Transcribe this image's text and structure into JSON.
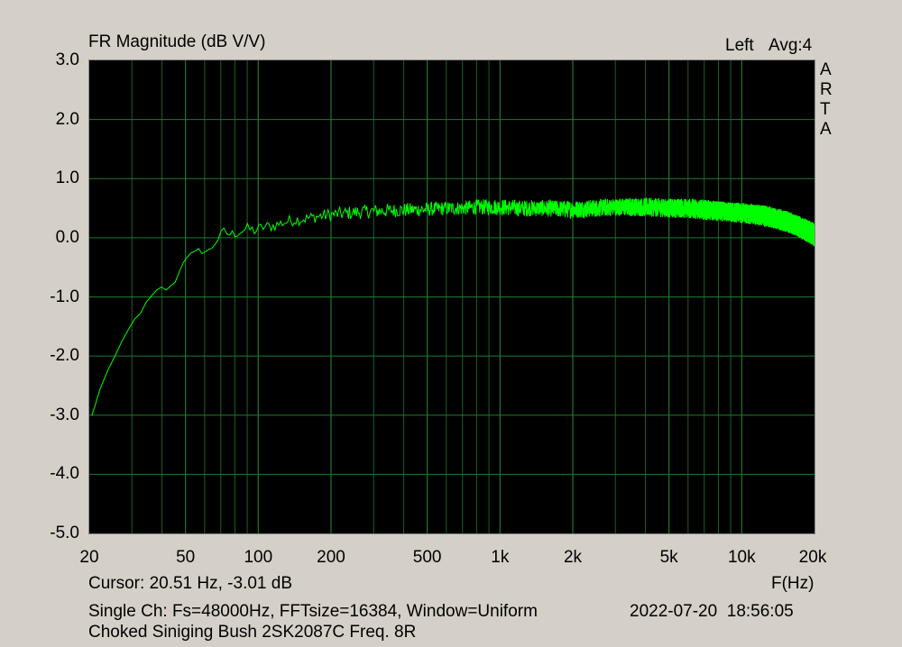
{
  "chart_data": {
    "type": "line",
    "title": "FR Magnitude (dB V/V)",
    "channel_label": "Left",
    "avg_label": "Avg:4",
    "brand": "ARTA",
    "xlabel": "F(Hz)",
    "xscale": "log",
    "xlim": [
      20,
      20000
    ],
    "ylim": [
      -5.0,
      3.0
    ],
    "grid": true,
    "yticks": [
      "3.0",
      "2.0",
      "1.0",
      "0.0",
      "-1.0",
      "-2.0",
      "-3.0",
      "-4.0",
      "-5.0"
    ],
    "ytick_values": [
      3,
      2,
      1,
      0,
      -1,
      -2,
      -3,
      -4,
      -5
    ],
    "xticks": [
      "20",
      "50",
      "100",
      "200",
      "500",
      "1k",
      "2k",
      "5k",
      "10k",
      "20k"
    ],
    "xtick_values": [
      20,
      50,
      100,
      200,
      500,
      1000,
      2000,
      5000,
      10000,
      20000
    ],
    "colors": {
      "trace": "#00ff00",
      "grid": "#1e7a2e",
      "background": "#000000"
    },
    "series": [
      {
        "x": [
          20.5,
          23,
          26,
          30,
          34,
          37,
          40,
          43,
          47,
          50,
          54,
          58,
          62,
          67,
          72,
          77,
          83,
          90,
          97,
          105,
          115,
          125,
          140,
          155,
          170,
          190,
          210,
          240,
          270,
          300,
          350,
          400,
          500,
          600,
          700,
          800,
          1000,
          1200,
          1500,
          2000,
          2500,
          3000,
          4000,
          5000,
          6000,
          8000,
          10000,
          12000,
          14000,
          16000,
          18000,
          20000
        ],
        "y": [
          -3.01,
          -2.35,
          -1.95,
          -1.45,
          -1.15,
          -0.95,
          -0.85,
          -0.88,
          -0.6,
          -0.28,
          -0.3,
          -0.2,
          -0.25,
          -0.05,
          0.1,
          0.05,
          0.1,
          0.15,
          0.12,
          0.18,
          0.2,
          0.25,
          0.3,
          0.32,
          0.35,
          0.38,
          0.4,
          0.42,
          0.44,
          0.45,
          0.46,
          0.47,
          0.48,
          0.5,
          0.5,
          0.52,
          0.52,
          0.5,
          0.5,
          0.48,
          0.5,
          0.52,
          0.52,
          0.5,
          0.5,
          0.45,
          0.42,
          0.38,
          0.32,
          0.25,
          0.15,
          0.05
        ],
        "noise_dB": [
          0.0,
          0.02,
          0.03,
          0.04,
          0.04,
          0.05,
          0.05,
          0.06,
          0.06,
          0.07,
          0.07,
          0.08,
          0.08,
          0.08,
          0.09,
          0.09,
          0.09,
          0.1,
          0.1,
          0.1,
          0.1,
          0.1,
          0.1,
          0.1,
          0.1,
          0.11,
          0.11,
          0.12,
          0.12,
          0.12,
          0.12,
          0.12,
          0.12,
          0.12,
          0.12,
          0.13,
          0.14,
          0.14,
          0.14,
          0.15,
          0.15,
          0.15,
          0.16,
          0.16,
          0.17,
          0.17,
          0.17,
          0.18,
          0.18,
          0.18,
          0.19,
          0.2
        ]
      }
    ]
  },
  "cursor_text": "Cursor: 20.51 Hz, -3.01 dB",
  "info_line": "Single Ch: Fs=48000Hz, FFTsize=16384, Window=Uniform",
  "timestamp": "2022-07-20  18:56:05",
  "description": "Choked Siniging Bush 2SK2087C Freq. 8R"
}
